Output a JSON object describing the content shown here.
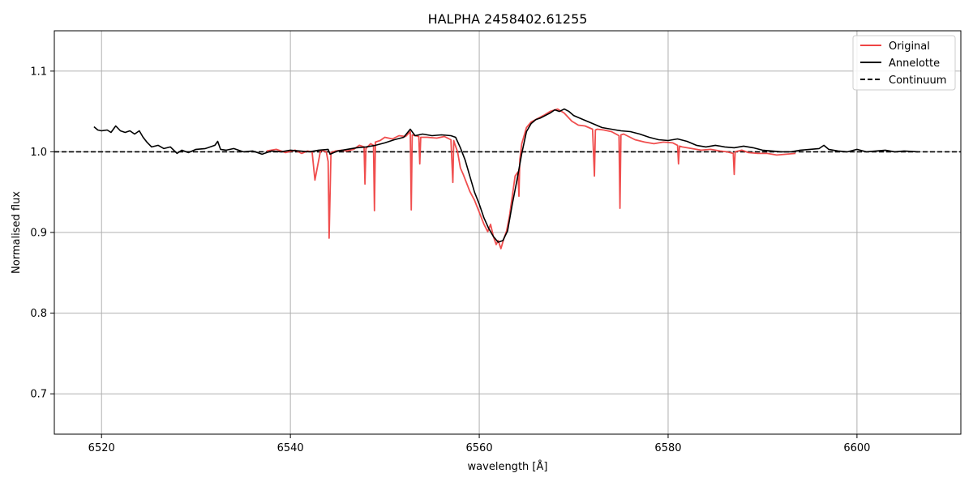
{
  "chart_data": {
    "type": "line",
    "title": "HALPHA 2458402.61255",
    "xlabel": "wavelength [Å]",
    "ylabel": "Normalised flux",
    "xlim": [
      6515,
      6611
    ],
    "ylim": [
      0.65,
      1.15
    ],
    "xticks": [
      6520,
      6540,
      6560,
      6580,
      6600
    ],
    "yticks": [
      0.7,
      0.8,
      0.9,
      1.0,
      1.1
    ],
    "grid": true,
    "legend_position": "upper right",
    "continuum_level": 1.0,
    "colors": {
      "original": "#ef4444",
      "annelotte": "#000000",
      "continuum": "#000000",
      "grid": "#b0b0b0"
    },
    "series": [
      {
        "name": "Original",
        "style": "solid",
        "x": [
          6537.5,
          6538.5,
          6539.5,
          6540.5,
          6541.2,
          6541.8,
          6542.3,
          6542.6,
          6543.2,
          6543.8,
          6544.0,
          6544.1,
          6544.3,
          6544.8,
          6545.5,
          6546.0,
          6546.7,
          6547.3,
          6547.8,
          6547.9,
          6548.0,
          6548.5,
          6548.8,
          6548.9,
          6549.0,
          6549.5,
          6550.0,
          6550.8,
          6551.5,
          6552.2,
          6552.7,
          6552.8,
          6552.9,
          6553.2,
          6553.6,
          6553.7,
          6553.8,
          6554.5,
          6555.5,
          6556.3,
          6557.0,
          6557.2,
          6557.3,
          6557.4,
          6557.7,
          6558.0,
          6558.3,
          6558.6,
          6559.0,
          6559.5,
          6560.0,
          6560.5,
          6560.9,
          6561.2,
          6561.5,
          6561.8,
          6562.0,
          6562.3,
          6562.6,
          6562.9,
          6563.2,
          6563.5,
          6563.8,
          6564.1,
          6564.2,
          6564.3,
          6564.5,
          6565.0,
          6565.5,
          6566.0,
          6566.8,
          6567.5,
          6568.3,
          6569.0,
          6569.8,
          6570.5,
          6571.2,
          6572.0,
          6572.2,
          6572.3,
          6572.5,
          6573.2,
          6574.0,
          6574.8,
          6574.9,
          6575.0,
          6575.3,
          6576.5,
          6577.5,
          6578.5,
          6579.5,
          6580.5,
          6581.0,
          6581.1,
          6581.2,
          6581.5,
          6582.5,
          6583.5,
          6584.5,
          6585.5,
          6586.2,
          6586.9,
          6587.0,
          6587.1,
          6587.8,
          6588.5,
          6589.5,
          6590.5,
          6591.5,
          6592.5,
          6593.5
        ],
        "y": [
          1.001,
          1.003,
          0.999,
          1.002,
          0.998,
          1.001,
          1.0,
          0.965,
          1.002,
          1.0,
          0.988,
          0.893,
          0.999,
          1.001,
          1.002,
          1.001,
          1.003,
          1.008,
          1.006,
          0.96,
          1.004,
          1.01,
          1.008,
          0.927,
          1.012,
          1.014,
          1.018,
          1.016,
          1.02,
          1.019,
          1.025,
          0.928,
          1.021,
          1.02,
          1.019,
          0.985,
          1.018,
          1.018,
          1.017,
          1.019,
          1.015,
          0.962,
          1.014,
          1.01,
          1.0,
          0.98,
          0.972,
          0.963,
          0.951,
          0.94,
          0.925,
          0.91,
          0.901,
          0.91,
          0.895,
          0.885,
          0.89,
          0.88,
          0.892,
          0.902,
          0.92,
          0.945,
          0.97,
          0.975,
          0.945,
          0.99,
          1.01,
          1.03,
          1.037,
          1.04,
          1.045,
          1.05,
          1.053,
          1.048,
          1.038,
          1.033,
          1.032,
          1.028,
          0.97,
          1.027,
          1.028,
          1.027,
          1.025,
          1.02,
          0.93,
          1.021,
          1.022,
          1.015,
          1.012,
          1.01,
          1.012,
          1.011,
          1.008,
          0.985,
          1.007,
          1.006,
          1.004,
          1.002,
          1.003,
          1.001,
          1.0,
          0.998,
          0.972,
          1.0,
          1.002,
          0.999,
          0.998,
          0.998,
          0.996,
          0.997,
          0.998
        ]
      },
      {
        "name": "Annelotte",
        "style": "solid",
        "x": [
          6519.2,
          6519.6,
          6520.0,
          6520.6,
          6521.0,
          6521.5,
          6522.0,
          6522.5,
          6523.0,
          6523.5,
          6524.0,
          6524.4,
          6524.8,
          6525.3,
          6526.0,
          6526.6,
          6527.3,
          6528.0,
          6528.5,
          6529.2,
          6530.0,
          6531.0,
          6532.0,
          6532.3,
          6532.6,
          6533.2,
          6534.0,
          6535.0,
          6536.0,
          6537.0,
          6538.0,
          6539.0,
          6540.0,
          6541.0,
          6542.0,
          6543.0,
          6544.0,
          6544.2,
          6545.0,
          6546.0,
          6547.0,
          6548.0,
          6549.0,
          6550.0,
          6551.0,
          6552.0,
          6552.7,
          6553.2,
          6554.0,
          6555.0,
          6556.0,
          6557.0,
          6557.5,
          6558.0,
          6558.5,
          6559.0,
          6559.5,
          6560.0,
          6560.5,
          6561.0,
          6561.5,
          6562.0,
          6562.5,
          6563.0,
          6563.5,
          6564.0,
          6564.5,
          6565.0,
          6565.5,
          6566.0,
          6566.5,
          6567.0,
          6567.5,
          6568.0,
          6568.5,
          6569.0,
          6569.5,
          6570.0,
          6571.0,
          6572.0,
          6573.0,
          6574.0,
          6575.0,
          6576.0,
          6577.0,
          6578.0,
          6579.0,
          6580.0,
          6581.0,
          6582.0,
          6583.0,
          6584.0,
          6585.0,
          6586.0,
          6587.0,
          6588.0,
          6589.0,
          6590.0,
          6591.0,
          6592.0,
          6593.0,
          6594.0,
          6595.0,
          6596.0,
          6596.5,
          6597.0,
          6598.0,
          6599.0,
          6600.0,
          6601.0,
          6602.0,
          6603.0,
          6604.0,
          6605.0,
          6606.5
        ],
        "y": [
          1.031,
          1.027,
          1.026,
          1.027,
          1.024,
          1.032,
          1.026,
          1.024,
          1.026,
          1.022,
          1.026,
          1.018,
          1.012,
          1.006,
          1.008,
          1.004,
          1.006,
          0.998,
          1.002,
          0.999,
          1.003,
          1.004,
          1.008,
          1.013,
          1.003,
          1.002,
          1.004,
          1.0,
          1.001,
          0.997,
          1.001,
          1.0,
          1.002,
          1.001,
          1.0,
          1.002,
          1.003,
          0.997,
          1.001,
          1.003,
          1.005,
          1.006,
          1.008,
          1.011,
          1.015,
          1.018,
          1.028,
          1.02,
          1.022,
          1.02,
          1.021,
          1.02,
          1.018,
          1.005,
          0.99,
          0.97,
          0.95,
          0.935,
          0.918,
          0.905,
          0.895,
          0.888,
          0.89,
          0.902,
          0.935,
          0.965,
          0.998,
          1.025,
          1.035,
          1.04,
          1.042,
          1.045,
          1.048,
          1.052,
          1.05,
          1.053,
          1.05,
          1.045,
          1.04,
          1.035,
          1.03,
          1.028,
          1.026,
          1.025,
          1.022,
          1.018,
          1.015,
          1.014,
          1.016,
          1.013,
          1.008,
          1.006,
          1.008,
          1.006,
          1.005,
          1.007,
          1.005,
          1.002,
          1.001,
          1.0,
          1.0,
          1.002,
          1.003,
          1.004,
          1.008,
          1.003,
          1.001,
          1.0,
          1.003,
          1.0,
          1.001,
          1.002,
          1.0,
          1.001,
          1.0
        ]
      },
      {
        "name": "Continuum",
        "style": "dashed",
        "x": [
          6515,
          6611
        ],
        "y": [
          1.0,
          1.0
        ]
      }
    ]
  }
}
